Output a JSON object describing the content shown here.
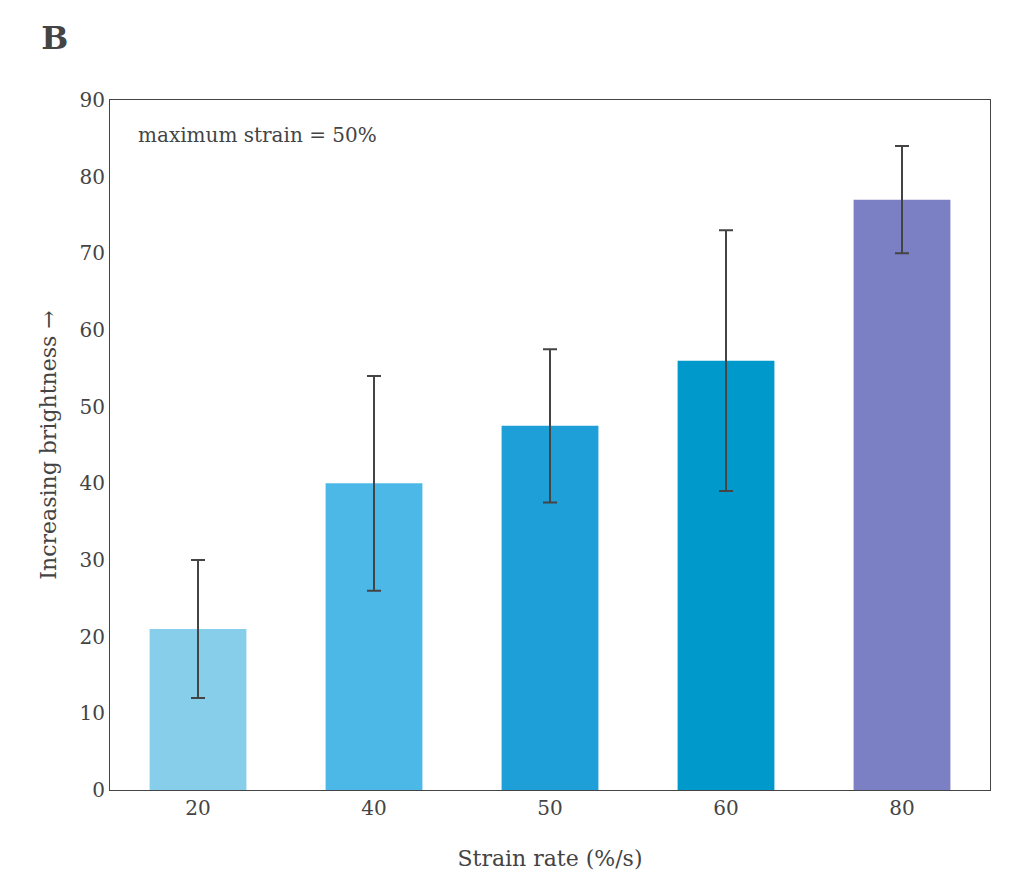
{
  "chart_data": {
    "type": "bar",
    "title": "B",
    "xlabel": "Strain rate (%/s)",
    "ylabel": "Increasing brightness →",
    "annotation": "maximum strain = 50%",
    "categories": [
      "20",
      "40",
      "50",
      "60",
      "80"
    ],
    "values": [
      21,
      40,
      47.5,
      56,
      77
    ],
    "errors": [
      9,
      14,
      10,
      17,
      7
    ],
    "colors": [
      "#87CEEB",
      "#4BB8E8",
      "#1E9FD8",
      "#0099CC",
      "#7B7FC4"
    ],
    "ylim": [
      0,
      90
    ],
    "yticks": [
      0,
      10,
      20,
      30,
      40,
      50,
      60,
      70,
      80,
      90
    ],
    "grid": false
  }
}
